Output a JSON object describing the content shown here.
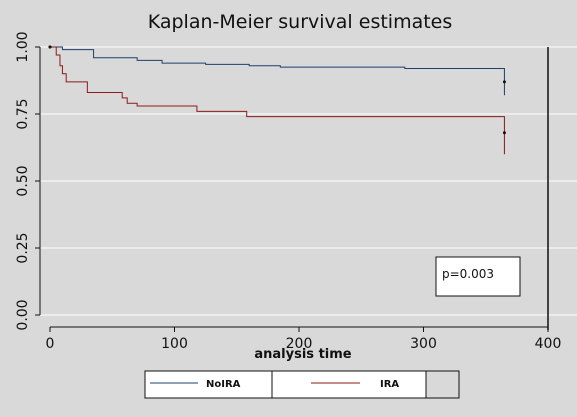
{
  "chart_data": {
    "type": "line",
    "subtype": "step",
    "title": "Kaplan-Meier survival estimates",
    "xlabel": "analysis time",
    "ylabel": "",
    "xlim": [
      0,
      400
    ],
    "ylim": [
      0,
      1
    ],
    "x_ticks": [
      0,
      100,
      200,
      300,
      400
    ],
    "y_ticks": [
      0.0,
      0.25,
      0.5,
      0.75,
      1.0
    ],
    "x_tick_labels": [
      "0",
      "100",
      "200",
      "300",
      "400"
    ],
    "y_tick_labels": [
      "0.00",
      "0.25",
      "0.50",
      "0.75",
      "1.00"
    ],
    "grid": "horizontal",
    "legend_position": "bottom",
    "annotation": "p=0.003",
    "series": [
      {
        "name": "NoIRA",
        "color": "#1f3f6e",
        "steps": [
          [
            0,
            1.0
          ],
          [
            10,
            0.99
          ],
          [
            35,
            0.96
          ],
          [
            70,
            0.95
          ],
          [
            90,
            0.94
          ],
          [
            125,
            0.935
          ],
          [
            160,
            0.93
          ],
          [
            185,
            0.925
          ],
          [
            285,
            0.92
          ],
          [
            365,
            0.87
          ],
          [
            365,
            0.82
          ]
        ],
        "censor_marks": [
          [
            0,
            1.0
          ],
          [
            365,
            0.87
          ]
        ]
      },
      {
        "name": "IRA",
        "color": "#8b1a1a",
        "steps": [
          [
            0,
            1.0
          ],
          [
            5,
            0.97
          ],
          [
            8,
            0.93
          ],
          [
            10,
            0.9
          ],
          [
            13,
            0.87
          ],
          [
            30,
            0.83
          ],
          [
            58,
            0.81
          ],
          [
            62,
            0.79
          ],
          [
            70,
            0.78
          ],
          [
            118,
            0.76
          ],
          [
            158,
            0.74
          ],
          [
            365,
            0.68
          ],
          [
            365,
            0.6
          ]
        ],
        "censor_marks": [
          [
            0,
            1.0
          ],
          [
            365,
            0.68
          ]
        ]
      }
    ]
  }
}
